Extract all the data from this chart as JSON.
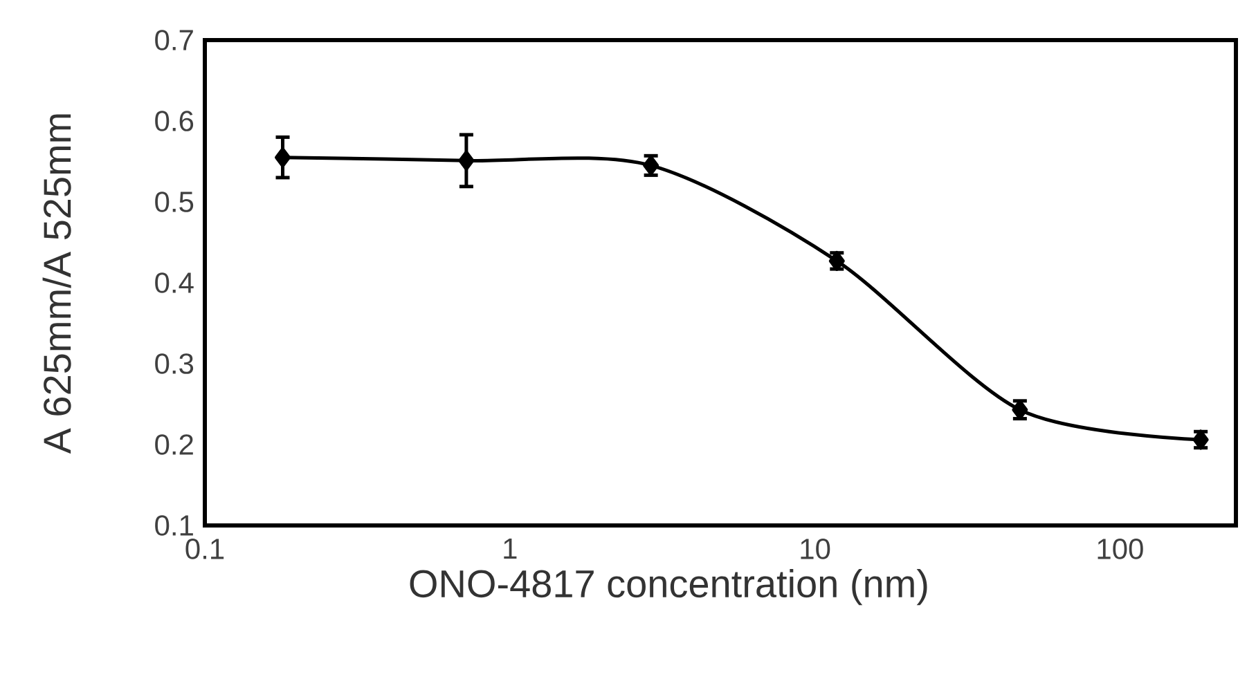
{
  "chart_data": {
    "type": "line",
    "xlabel": "ONO-4817 concentration (nm)",
    "ylabel": "A 625mm/A 525mm",
    "x": [
      0.18,
      0.72,
      2.9,
      11.8,
      47,
      184
    ],
    "series": [
      {
        "color": "#000000",
        "values": [
          0.555,
          0.551,
          0.545,
          0.427,
          0.243,
          0.206
        ],
        "errors": [
          0.025,
          0.032,
          0.012,
          0.01,
          0.011,
          0.01
        ]
      }
    ],
    "log": "x",
    "xlim": [
      0.1,
      240
    ],
    "ylim": [
      0.1,
      0.7
    ],
    "xticks": [
      0.1,
      1,
      10,
      100
    ],
    "yticks": [
      0.1,
      0.2,
      0.3,
      0.4,
      0.5,
      0.6,
      0.7
    ],
    "marker": "diamond",
    "line_style": "solid"
  }
}
